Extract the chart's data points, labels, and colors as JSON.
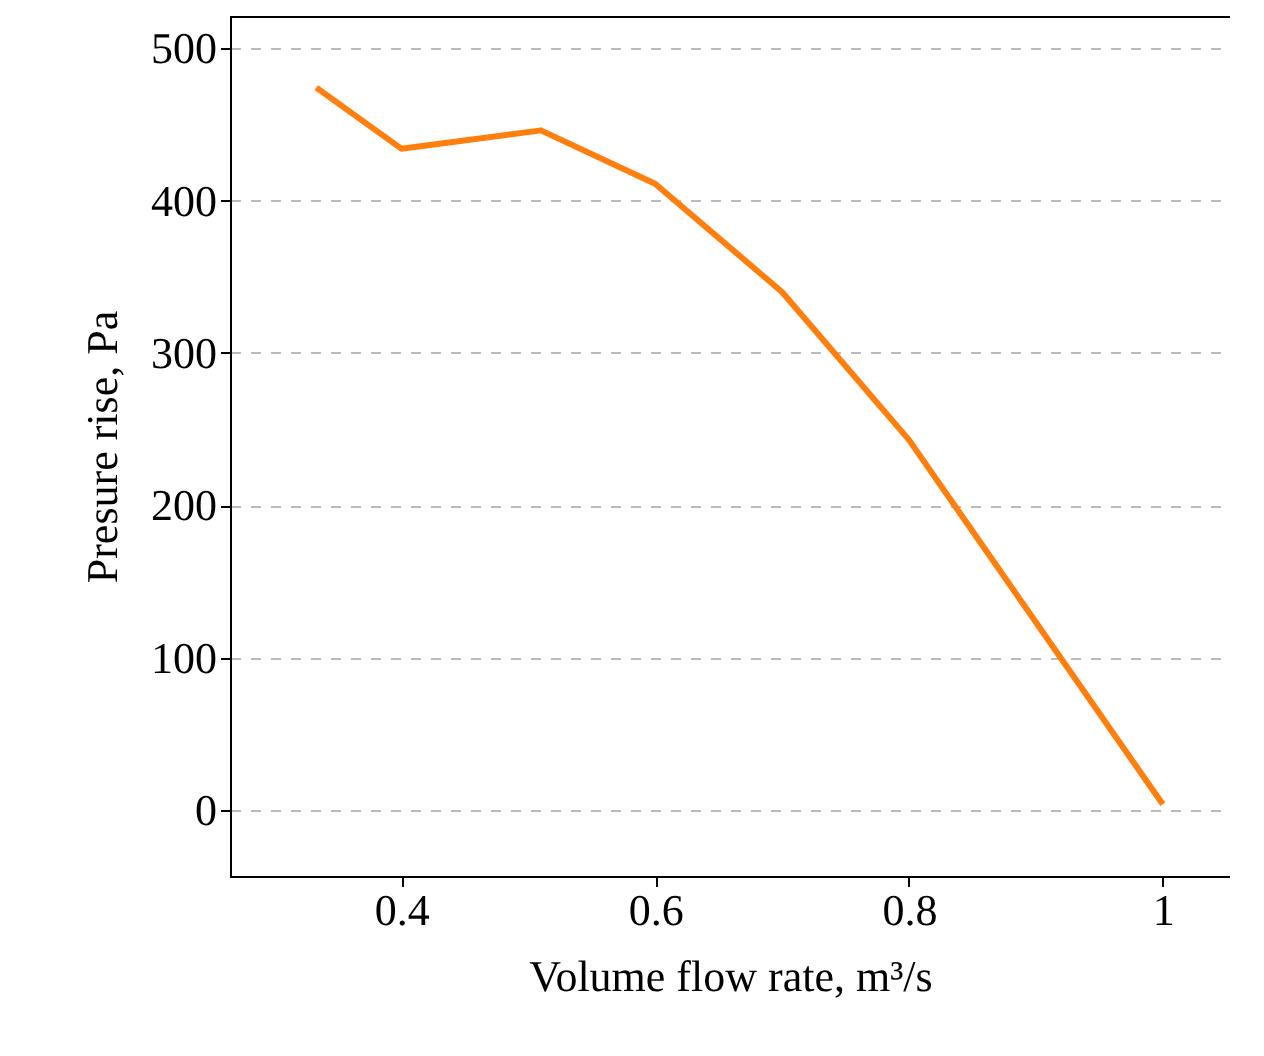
{
  "chart_data": {
    "type": "line",
    "xlabel": "Volume flow rate, m³/s",
    "ylabel": "Presure rise, Pa",
    "x": [
      0.333,
      0.4,
      0.51,
      0.6,
      0.7,
      0.8,
      1.0
    ],
    "series": [
      {
        "color": "#ff7f0e",
        "values": [
          474,
          434,
          446,
          411,
          340,
          243,
          4
        ]
      }
    ],
    "xlim": [
      0.265,
      1.053
    ],
    "ylim": [
      -43,
      521
    ],
    "xticks": [
      0.4,
      0.6,
      0.8,
      1
    ],
    "yticks": [
      0,
      100,
      200,
      300,
      400,
      500
    ],
    "grid": "y",
    "marker": "none",
    "line_style": "solid"
  }
}
